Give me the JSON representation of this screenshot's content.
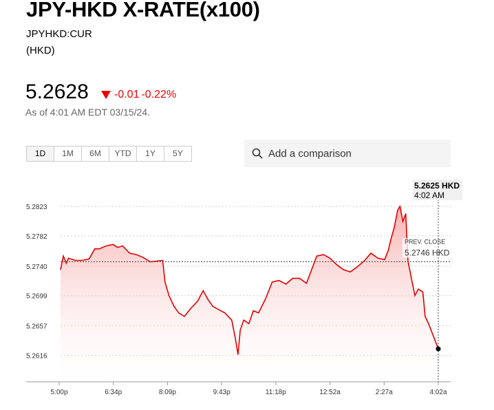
{
  "header": {
    "title": "JPY-HKD X-RATE(x100)",
    "ticker": "JPYHKD:CUR",
    "currency": "(HKD)"
  },
  "quote": {
    "price": "5.2628",
    "change": "-0.01",
    "change_pct": "-0.22%",
    "direction": "down",
    "as_of": "As of 4:01 AM EDT 03/15/24."
  },
  "tabs": [
    {
      "label": "1D",
      "active": true
    },
    {
      "label": "1M"
    },
    {
      "label": "6M"
    },
    {
      "label": "YTD"
    },
    {
      "label": "1Y"
    },
    {
      "label": "5Y"
    }
  ],
  "search": {
    "placeholder": "Add a comparison",
    "icon": "search-icon"
  },
  "colors": {
    "line": "#e00000",
    "fill": "#fbd0d0",
    "negative": "#e00000"
  },
  "chart_data": {
    "type": "area",
    "yticks": [
      "5.2823",
      "5.2782",
      "5.2740",
      "5.2699",
      "5.2657",
      "5.2616"
    ],
    "xticks": [
      "5:00p",
      "6:34p",
      "8:09p",
      "9:43p",
      "11:18p",
      "12:52a",
      "2:27a",
      "4:02a"
    ],
    "ylim": [
      5.258,
      5.286
    ],
    "grid": true,
    "prev_close": {
      "label": "PREV. CLOSE",
      "value": 5.2746,
      "text": "5.2746 HKD"
    },
    "tooltip": {
      "value": "5.2625 HKD",
      "time": "4:02 AM"
    },
    "x": [
      "17:00",
      "17:05",
      "17:10",
      "17:14",
      "17:26",
      "17:38",
      "17:50",
      "18:00",
      "18:08",
      "18:20",
      "18:32",
      "18:40",
      "18:49",
      "19:01",
      "19:13",
      "19:25",
      "19:37",
      "19:49",
      "19:59",
      "20:03",
      "20:10",
      "20:19",
      "20:27",
      "20:37",
      "20:48",
      "21:00",
      "21:10",
      "21:18",
      "21:27",
      "21:36",
      "21:48",
      "22:00",
      "22:06",
      "22:11",
      "22:15",
      "22:21",
      "22:30",
      "22:38",
      "22:47",
      "22:59",
      "23:11",
      "23:23",
      "23:35",
      "23:47",
      "23:59",
      "00:11",
      "00:20",
      "00:29",
      "00:41",
      "00:52",
      "01:04",
      "01:16",
      "01:28",
      "01:40",
      "01:52",
      "02:04",
      "02:16",
      "02:28",
      "02:34",
      "02:40",
      "02:45",
      "02:51",
      "02:55",
      "03:00",
      "03:05",
      "03:09",
      "03:15",
      "03:21",
      "03:27",
      "03:35",
      "03:39",
      "03:45",
      "04:02"
    ],
    "values": [
      5.2735,
      5.2754,
      5.2744,
      5.2751,
      5.2748,
      5.2748,
      5.275,
      5.2764,
      5.2764,
      5.2768,
      5.277,
      5.2766,
      5.2768,
      5.2758,
      5.2756,
      5.2752,
      5.2746,
      5.2747,
      5.2748,
      5.2718,
      5.2699,
      5.2684,
      5.2675,
      5.267,
      5.2681,
      5.2691,
      5.2706,
      5.2694,
      5.2684,
      5.268,
      5.2675,
      5.2665,
      5.2641,
      5.2617,
      5.2651,
      5.2665,
      5.266,
      5.2678,
      5.2675,
      5.2694,
      5.2718,
      5.272,
      5.2715,
      5.2723,
      5.2723,
      5.2716,
      5.2735,
      5.2754,
      5.2756,
      5.2751,
      5.2742,
      5.2735,
      5.2732,
      5.2739,
      5.2747,
      5.2758,
      5.2751,
      5.2749,
      5.2761,
      5.278,
      5.2794,
      5.2818,
      5.2823,
      5.2802,
      5.2813,
      5.2747,
      5.2723,
      5.2699,
      5.2708,
      5.2704,
      5.267,
      5.266,
      5.2625
    ]
  }
}
